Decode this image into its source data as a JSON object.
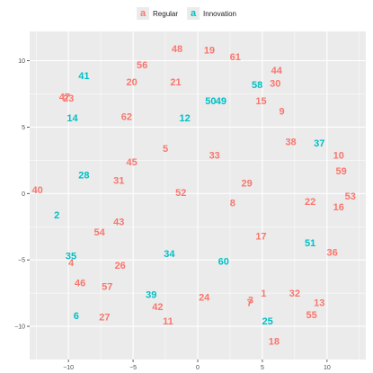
{
  "chart_data": {
    "type": "scatter",
    "title": "",
    "xlabel": "",
    "ylabel": "",
    "xlim": [
      -13,
      13
    ],
    "ylim": [
      -12.5,
      12.2
    ],
    "xticks": [
      -10,
      -5,
      0,
      5,
      10
    ],
    "yticks": [
      -10,
      -5,
      0,
      5,
      10
    ],
    "grid": true,
    "legend_position": "top",
    "legend_key_glyph": "a",
    "series": [
      {
        "name": "Regular",
        "color": "#F8766D",
        "points": [
          {
            "label": "1",
            "x": 5.1,
            "y": -7.5
          },
          {
            "label": "3",
            "x": 4.1,
            "y": -8.0
          },
          {
            "label": "4",
            "x": -9.8,
            "y": -5.2
          },
          {
            "label": "5",
            "x": -2.5,
            "y": 3.4
          },
          {
            "label": "7",
            "x": 4.0,
            "y": -8.2
          },
          {
            "label": "8",
            "x": 2.7,
            "y": -0.7
          },
          {
            "label": "9",
            "x": 6.5,
            "y": 6.2
          },
          {
            "label": "10",
            "x": 10.9,
            "y": 2.9
          },
          {
            "label": "11",
            "x": -2.3,
            "y": -9.6
          },
          {
            "label": "13",
            "x": 9.4,
            "y": -8.2
          },
          {
            "label": "15",
            "x": 4.9,
            "y": 7.0
          },
          {
            "label": "16",
            "x": 10.9,
            "y": -1.0
          },
          {
            "label": "17",
            "x": 4.9,
            "y": -3.2
          },
          {
            "label": "18",
            "x": 5.9,
            "y": -11.1
          },
          {
            "label": "19",
            "x": 0.9,
            "y": 10.8
          },
          {
            "label": "20",
            "x": -5.1,
            "y": 8.4
          },
          {
            "label": "21",
            "x": -1.7,
            "y": 8.4
          },
          {
            "label": "22",
            "x": 8.7,
            "y": -0.6
          },
          {
            "label": "24",
            "x": 0.5,
            "y": -7.8
          },
          {
            "label": "26",
            "x": -6.0,
            "y": -5.4
          },
          {
            "label": "27",
            "x": -7.2,
            "y": -9.3
          },
          {
            "label": "29",
            "x": 3.8,
            "y": 0.8
          },
          {
            "label": "30",
            "x": 6.0,
            "y": 8.3
          },
          {
            "label": "31",
            "x": -6.1,
            "y": 1.0
          },
          {
            "label": "32",
            "x": 7.5,
            "y": -7.5
          },
          {
            "label": "33",
            "x": 1.3,
            "y": 2.9
          },
          {
            "label": "36",
            "x": 10.4,
            "y": -4.4
          },
          {
            "label": "38",
            "x": 7.2,
            "y": 3.9
          },
          {
            "label": "40",
            "x": -12.4,
            "y": 0.3
          },
          {
            "label": "42",
            "x": -3.1,
            "y": -8.5
          },
          {
            "label": "43",
            "x": -6.1,
            "y": -2.1
          },
          {
            "label": "44",
            "x": 6.1,
            "y": 9.3
          },
          {
            "label": "45",
            "x": -5.1,
            "y": 2.4
          },
          {
            "label": "46",
            "x": -9.1,
            "y": -6.7
          },
          {
            "label": "47",
            "x": -10.3,
            "y": 7.3
          },
          {
            "label": "48",
            "x": -1.6,
            "y": 10.9
          },
          {
            "label": "52",
            "x": -1.3,
            "y": 0.1
          },
          {
            "label": "53",
            "x": 11.8,
            "y": -0.2
          },
          {
            "label": "54",
            "x": -7.6,
            "y": -2.9
          },
          {
            "label": "55",
            "x": 8.8,
            "y": -9.1
          },
          {
            "label": "56",
            "x": -4.3,
            "y": 9.7
          },
          {
            "label": "57",
            "x": -7.0,
            "y": -7.0
          },
          {
            "label": "59",
            "x": 11.1,
            "y": 1.7
          },
          {
            "label": "61",
            "x": 2.9,
            "y": 10.3
          },
          {
            "label": "62",
            "x": -5.5,
            "y": 5.8
          },
          {
            "label": "23",
            "x": -10.0,
            "y": 7.2
          }
        ]
      },
      {
        "name": "Innovation",
        "color": "#00BFC4",
        "points": [
          {
            "label": "2",
            "x": -10.9,
            "y": -1.6
          },
          {
            "label": "6",
            "x": -9.4,
            "y": -9.2
          },
          {
            "label": "12",
            "x": -1.0,
            "y": 5.7
          },
          {
            "label": "14",
            "x": -9.7,
            "y": 5.7
          },
          {
            "label": "25",
            "x": 5.4,
            "y": -9.6
          },
          {
            "label": "28",
            "x": -8.8,
            "y": 1.4
          },
          {
            "label": "34",
            "x": -2.2,
            "y": -4.5
          },
          {
            "label": "35",
            "x": -9.8,
            "y": -4.7
          },
          {
            "label": "37",
            "x": 9.4,
            "y": 3.8
          },
          {
            "label": "39",
            "x": -3.6,
            "y": -7.6
          },
          {
            "label": "41",
            "x": -8.8,
            "y": 8.9
          },
          {
            "label": "49",
            "x": 1.8,
            "y": 7.0
          },
          {
            "label": "50",
            "x": 1.0,
            "y": 7.0
          },
          {
            "label": "51",
            "x": 8.7,
            "y": -3.7
          },
          {
            "label": "58",
            "x": 4.6,
            "y": 8.2
          },
          {
            "label": "60",
            "x": 2.0,
            "y": -5.1
          }
        ]
      }
    ]
  }
}
